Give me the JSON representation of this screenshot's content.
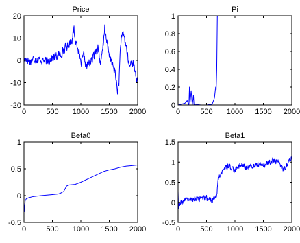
{
  "chart_data": [
    {
      "type": "line",
      "title": "Price",
      "xlabel": "",
      "ylabel": "",
      "xlim": [
        0,
        2000
      ],
      "ylim": [
        -20,
        20
      ],
      "xticks": [
        0,
        500,
        1000,
        1500,
        2000
      ],
      "yticks": [
        -20,
        -10,
        0,
        10,
        20
      ],
      "x": [
        0,
        50,
        100,
        150,
        200,
        250,
        300,
        350,
        400,
        450,
        500,
        550,
        600,
        650,
        700,
        750,
        800,
        850,
        880,
        900,
        950,
        1000,
        1050,
        1100,
        1150,
        1200,
        1250,
        1300,
        1350,
        1400,
        1420,
        1440,
        1500,
        1550,
        1600,
        1650,
        1670,
        1700,
        1750,
        1800,
        1850,
        1900,
        1950,
        2000
      ],
      "series": [
        {
          "color": "#0000ff",
          "noise": 1.8,
          "values": [
            0,
            1,
            -0.5,
            0.5,
            1,
            0,
            0.5,
            0,
            -0.5,
            0.5,
            1,
            1.5,
            2,
            3,
            5,
            6,
            8,
            10,
            14,
            9,
            6,
            -2,
            2,
            -3,
            -1,
            0,
            4,
            6,
            -2,
            8,
            16,
            10,
            3,
            -2,
            -5,
            -14,
            -10,
            8,
            12,
            6,
            -3,
            0,
            -4,
            -11
          ]
        }
      ]
    },
    {
      "type": "line",
      "title": "Pi",
      "xlabel": "",
      "ylabel": "",
      "xlim": [
        0,
        2000
      ],
      "ylim": [
        0,
        1
      ],
      "xticks": [
        0,
        500,
        1000,
        1500,
        2000
      ],
      "yticks": [
        0,
        0.2,
        0.4,
        0.6,
        0.8,
        1
      ],
      "x": [
        0,
        60,
        120,
        160,
        190,
        200,
        210,
        230,
        250,
        270,
        280,
        300,
        400,
        500,
        600,
        640,
        650,
        660,
        670,
        680,
        690,
        700,
        710,
        800,
        1000,
        1500,
        2000
      ],
      "series": [
        {
          "color": "#0000ff",
          "noise": 0,
          "values": [
            0,
            0.01,
            0.02,
            0.05,
            0.0,
            0.2,
            0.02,
            0.16,
            0.0,
            0.11,
            0.0,
            0.01,
            0.0,
            0.0,
            0.01,
            0.08,
            0.14,
            0.2,
            0.17,
            0.4,
            0.99,
            1.0,
            1.0,
            1.0,
            1.0,
            1.0,
            1.0
          ]
        }
      ]
    },
    {
      "type": "line",
      "title": "Beta0",
      "xlabel": "",
      "ylabel": "",
      "xlim": [
        0,
        2000
      ],
      "ylim": [
        -0.5,
        1
      ],
      "xticks": [
        0,
        500,
        1000,
        1500,
        2000
      ],
      "yticks": [
        -0.5,
        0,
        0.5,
        1
      ],
      "x": [
        0,
        10,
        20,
        40,
        80,
        150,
        300,
        400,
        500,
        600,
        650,
        700,
        750,
        800,
        900,
        1000,
        1100,
        1200,
        1300,
        1400,
        1500,
        1600,
        1700,
        1800,
        1900,
        2000
      ],
      "series": [
        {
          "color": "#0000ff",
          "noise": 0,
          "values": [
            -0.12,
            -0.3,
            -0.1,
            -0.06,
            -0.04,
            -0.02,
            0.0,
            0.01,
            0.02,
            0.03,
            0.05,
            0.08,
            0.18,
            0.2,
            0.21,
            0.25,
            0.3,
            0.35,
            0.4,
            0.45,
            0.48,
            0.5,
            0.53,
            0.55,
            0.56,
            0.57
          ]
        }
      ]
    },
    {
      "type": "line",
      "title": "Beta1",
      "xlabel": "",
      "ylabel": "",
      "xlim": [
        0,
        2000
      ],
      "ylim": [
        -0.5,
        1.5
      ],
      "xticks": [
        0,
        500,
        1000,
        1500,
        2000
      ],
      "yticks": [
        -0.5,
        0,
        0.5,
        1,
        1.5
      ],
      "x": [
        0,
        10,
        20,
        40,
        80,
        150,
        200,
        300,
        400,
        500,
        600,
        650,
        680,
        700,
        720,
        750,
        800,
        900,
        1000,
        1100,
        1200,
        1300,
        1400,
        1500,
        1600,
        1700,
        1800,
        1850,
        1900,
        1950,
        1980,
        2000
      ],
      "series": [
        {
          "color": "#0000ff",
          "noise": 0.06,
          "values": [
            0.3,
            -0.2,
            -0.1,
            -0.05,
            0.0,
            0.1,
            0.05,
            0.1,
            0.08,
            0.1,
            0.05,
            0.1,
            0.2,
            0.5,
            0.65,
            0.7,
            0.85,
            0.9,
            0.8,
            0.95,
            0.85,
            0.9,
            0.95,
            0.9,
            1.0,
            1.05,
            0.95,
            0.8,
            0.9,
            1.0,
            1.1,
            1.15
          ]
        }
      ]
    }
  ]
}
